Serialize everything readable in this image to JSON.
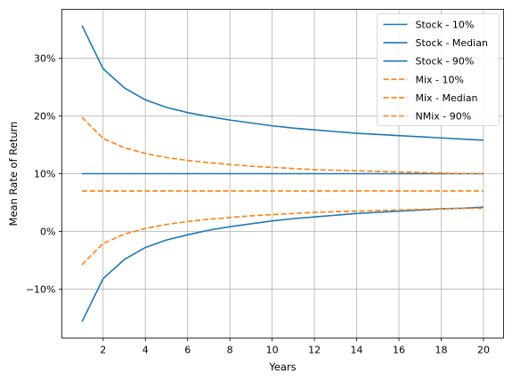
{
  "chart_data": {
    "type": "line",
    "title": "",
    "xlabel": "Years",
    "ylabel": "Mean Rate of Return",
    "x": [
      1,
      2,
      3,
      4,
      5,
      6,
      7,
      8,
      9,
      10,
      11,
      12,
      13,
      14,
      15,
      16,
      17,
      18,
      19,
      20
    ],
    "xlim": [
      0.05,
      20.95
    ],
    "ylim": [
      -18.5,
      38.5
    ],
    "xticks": [
      2,
      4,
      6,
      8,
      10,
      12,
      14,
      16,
      18,
      20
    ],
    "xtick_labels": [
      "2",
      "4",
      "6",
      "8",
      "10",
      "12",
      "14",
      "16",
      "18",
      "20"
    ],
    "yticks": [
      -10,
      0,
      10,
      20,
      30
    ],
    "ytick_labels": [
      "−10%",
      "0%",
      "10%",
      "20%",
      "30%"
    ],
    "grid": true,
    "legend_position": "top-right",
    "series": [
      {
        "name": "Stock - 10%",
        "color": "#1f77b4",
        "linestyle": "solid",
        "values": [
          35.7,
          28.2,
          24.9,
          22.8,
          21.5,
          20.6,
          19.9,
          19.3,
          18.8,
          18.3,
          17.9,
          17.6,
          17.3,
          17.0,
          16.8,
          16.6,
          16.4,
          16.2,
          16.0,
          15.8
        ]
      },
      {
        "name": "Stock - Median",
        "color": "#1f77b4",
        "linestyle": "solid",
        "values": [
          10,
          10,
          10,
          10,
          10,
          10,
          10,
          10,
          10,
          10,
          10,
          10,
          10,
          10,
          10,
          10,
          10,
          10,
          10,
          10
        ]
      },
      {
        "name": "Stock - 90%",
        "color": "#1f77b4",
        "linestyle": "solid",
        "values": [
          -15.7,
          -8.2,
          -4.9,
          -2.8,
          -1.5,
          -0.6,
          0.2,
          0.8,
          1.3,
          1.8,
          2.2,
          2.5,
          2.8,
          3.1,
          3.3,
          3.5,
          3.7,
          3.9,
          4.0,
          4.2
        ]
      },
      {
        "name": "Mix - 10%",
        "color": "#ff7f0e",
        "linestyle": "dashed",
        "values": [
          19.8,
          16.1,
          14.5,
          13.5,
          12.8,
          12.3,
          11.9,
          11.6,
          11.3,
          11.1,
          10.9,
          10.7,
          10.6,
          10.5,
          10.4,
          10.3,
          10.2,
          10.1,
          10.0,
          10.0
        ]
      },
      {
        "name": "Mix - Median",
        "color": "#ff7f0e",
        "linestyle": "dashed",
        "values": [
          7,
          7,
          7,
          7,
          7,
          7,
          7,
          7,
          7,
          7,
          7,
          7,
          7,
          7,
          7,
          7,
          7,
          7,
          7,
          7
        ]
      },
      {
        "name": "NMix - 90%",
        "color": "#ff7f0e",
        "linestyle": "dashed",
        "values": [
          -5.8,
          -2.1,
          -0.5,
          0.5,
          1.2,
          1.7,
          2.1,
          2.4,
          2.7,
          2.9,
          3.1,
          3.3,
          3.4,
          3.5,
          3.6,
          3.7,
          3.8,
          3.9,
          4.0,
          4.0
        ]
      }
    ]
  }
}
